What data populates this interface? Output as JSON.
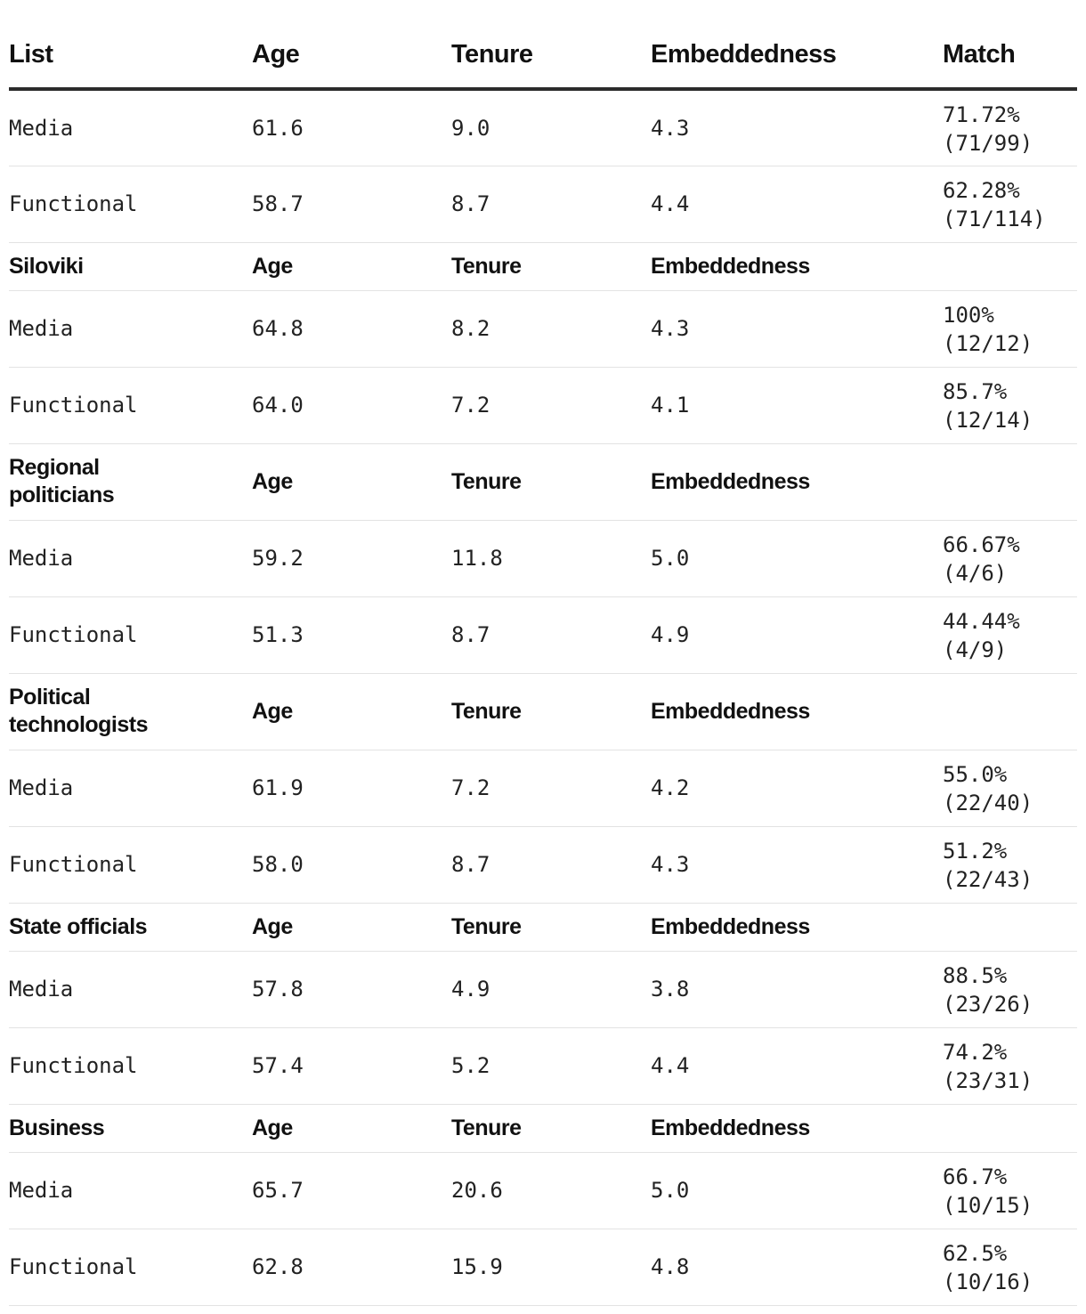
{
  "columns": [
    "List",
    "Age",
    "Tenure",
    "Embeddedness",
    "Match"
  ],
  "groups": [
    {
      "title": null,
      "rows": [
        {
          "list": "Media",
          "age": "61.6",
          "tenure": "9.0",
          "embeddedness": "4.3",
          "match_pct": "71.72%",
          "match_frac": "(71/99)"
        },
        {
          "list": "Functional",
          "age": "58.7",
          "tenure": "8.7",
          "embeddedness": "4.4",
          "match_pct": "62.28%",
          "match_frac": "(71/114)"
        }
      ]
    },
    {
      "title": "Siloviki",
      "age": "Age",
      "tenure": "Tenure",
      "embeddedness": "Embeddedness",
      "rows": [
        {
          "list": "Media",
          "age": "64.8",
          "tenure": "8.2",
          "embeddedness": "4.3",
          "match_pct": "100%",
          "match_frac": "(12/12)"
        },
        {
          "list": "Functional",
          "age": "64.0",
          "tenure": "7.2",
          "embeddedness": "4.1",
          "match_pct": "85.7%",
          "match_frac": "(12/14)"
        }
      ]
    },
    {
      "title_line1": "Regional",
      "title_line2": "politicians",
      "age": "Age",
      "tenure": "Tenure",
      "embeddedness": "Embeddedness",
      "rows": [
        {
          "list": "Media",
          "age": "59.2",
          "tenure": "11.8",
          "embeddedness": "5.0",
          "match_pct": "66.67%",
          "match_frac": "(4/6)"
        },
        {
          "list": "Functional",
          "age": "51.3",
          "tenure": "8.7",
          "embeddedness": "4.9",
          "match_pct": "44.44%",
          "match_frac": "(4/9)"
        }
      ]
    },
    {
      "title_line1": "Political",
      "title_line2": "technologists",
      "age": "Age",
      "tenure": "Tenure",
      "embeddedness": "Embeddedness",
      "rows": [
        {
          "list": "Media",
          "age": "61.9",
          "tenure": "7.2",
          "embeddedness": "4.2",
          "match_pct": "55.0%",
          "match_frac": "(22/40)"
        },
        {
          "list": "Functional",
          "age": "58.0",
          "tenure": "8.7",
          "embeddedness": "4.3",
          "match_pct": "51.2%",
          "match_frac": "(22/43)"
        }
      ]
    },
    {
      "title": "State officials",
      "age": "Age",
      "tenure": "Tenure",
      "embeddedness": "Embeddedness",
      "rows": [
        {
          "list": "Media",
          "age": "57.8",
          "tenure": "4.9",
          "embeddedness": "3.8",
          "match_pct": "88.5%",
          "match_frac": "(23/26)"
        },
        {
          "list": "Functional",
          "age": "57.4",
          "tenure": "5.2",
          "embeddedness": "4.4",
          "match_pct": "74.2%",
          "match_frac": "(23/31)"
        }
      ]
    },
    {
      "title": "Business",
      "age": "Age",
      "tenure": "Tenure",
      "embeddedness": "Embeddedness",
      "rows": [
        {
          "list": "Media",
          "age": "65.7",
          "tenure": "20.6",
          "embeddedness": "5.0",
          "match_pct": "66.7%",
          "match_frac": "(10/15)"
        },
        {
          "list": "Functional",
          "age": "62.8",
          "tenure": "15.9",
          "embeddedness": "4.8",
          "match_pct": "62.5%",
          "match_frac": "(10/16)"
        }
      ]
    }
  ]
}
